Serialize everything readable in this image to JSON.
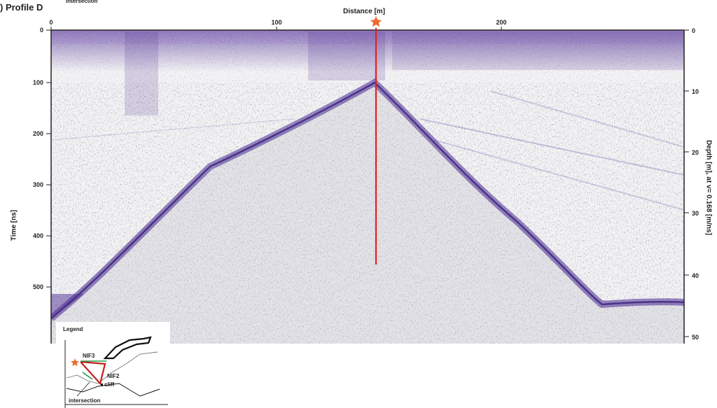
{
  "panel": {
    "title": ") Profile D",
    "inset_top_label": "intersection"
  },
  "axes": {
    "x_title": "Distance [m]",
    "x_ticks": [
      "0",
      "100",
      "200"
    ],
    "y_left_title": "Time [ns]",
    "y_left_ticks": [
      "0",
      "100",
      "200",
      "300",
      "400",
      "500"
    ],
    "y_right_title": "Depth [m], at v= 0.168 [m/ns]",
    "y_right_ticks": [
      "0",
      "10",
      "20",
      "30",
      "40",
      "50"
    ]
  },
  "marker": {
    "type": "star",
    "color": "#f06b2f",
    "line_color": "#e02222"
  },
  "legend": {
    "title": "Legend",
    "labels": {
      "nif3": "NIF3",
      "nif2": "NIF2",
      "cliff": "cliff",
      "intersection": "intersection"
    }
  },
  "colors": {
    "reflection": "#4b2a91",
    "noise": "#8c8c96"
  }
}
